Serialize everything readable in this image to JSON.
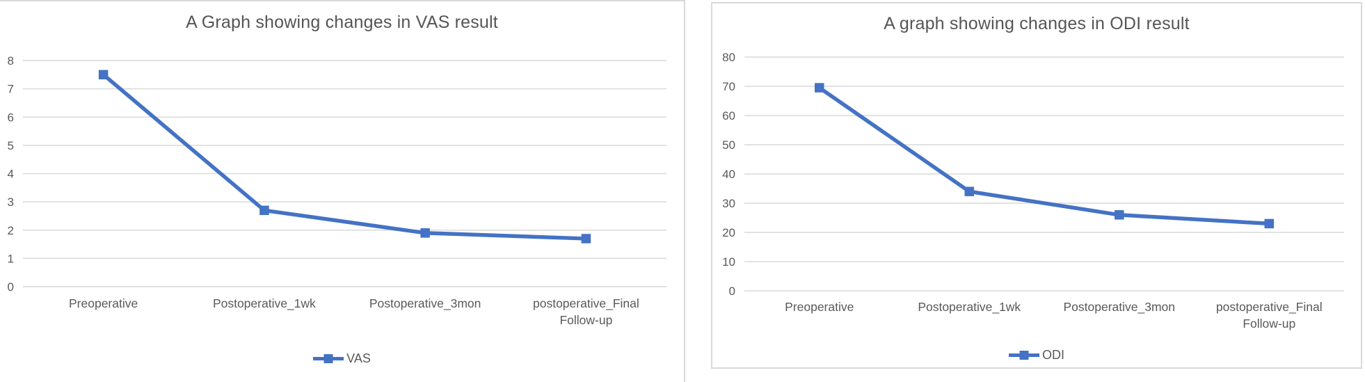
{
  "chart_data": [
    {
      "type": "line",
      "title": "A Graph showing changes in VAS result",
      "categories": [
        "Preoperative",
        "Postoperative_1wk",
        "Postoperative_3mon",
        "postoperative_Final Follow-up"
      ],
      "series": [
        {
          "name": "VAS",
          "values": [
            7.5,
            2.7,
            1.9,
            1.7
          ]
        }
      ],
      "ylim": [
        0,
        8
      ],
      "ytick_step": 1,
      "ytick_labels": [
        "0",
        "1",
        "2",
        "3",
        "4",
        "5",
        "6",
        "7",
        "8"
      ],
      "grid": true,
      "legend_position": "bottom",
      "legend_label": "VAS"
    },
    {
      "type": "line",
      "title": "A graph showing changes in ODI result",
      "categories": [
        "Preoperative",
        "Postoperative_1wk",
        "Postoperative_3mon",
        "postoperative_Final Follow-up"
      ],
      "series": [
        {
          "name": "ODI",
          "values": [
            69.5,
            34,
            26,
            23
          ]
        }
      ],
      "ylim": [
        0,
        80
      ],
      "ytick_step": 10,
      "ytick_labels": [
        "0",
        "10",
        "20",
        "30",
        "40",
        "50",
        "60",
        "70",
        "80"
      ],
      "grid": true,
      "legend_position": "bottom",
      "legend_label": "ODI"
    }
  ],
  "colors": {
    "series_line": "#4472C4",
    "marker_fill": "#4472C4",
    "gridline": "#D9D9D9",
    "axis_text": "#595959",
    "title_text": "#555555",
    "panel_border": "#D9D9D9",
    "background": "#FFFFFF"
  }
}
